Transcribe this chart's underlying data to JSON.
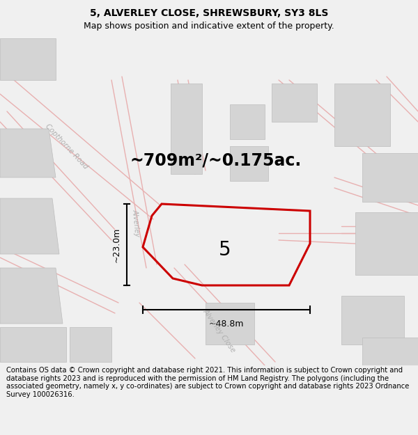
{
  "title": "5, ALVERLEY CLOSE, SHREWSBURY, SY3 8LS",
  "subtitle": "Map shows position and indicative extent of the property.",
  "footer": "Contains OS data © Crown copyright and database right 2021. This information is subject to Crown copyright and database rights 2023 and is reproduced with the permission of HM Land Registry. The polygons (including the associated geometry, namely x, y co-ordinates) are subject to Crown copyright and database rights 2023 Ordnance Survey 100026316.",
  "area_label": "~709m²/~0.175ac.",
  "property_number": "5",
  "dim_width": "~48.8m",
  "dim_height": "~23.0m",
  "bg_color": "#f0f0f0",
  "map_bg": "#ffffff",
  "road_color_main": "#e8b0b0",
  "building_color": "#d4d4d4",
  "building_edge": "#bcbcbc",
  "property_color": "#cc0000",
  "road_label_color": "#b0b0b0",
  "title_fontsize": 10,
  "subtitle_fontsize": 9,
  "footer_fontsize": 7.2,
  "figsize": [
    6.0,
    6.25
  ],
  "dpi": 100
}
